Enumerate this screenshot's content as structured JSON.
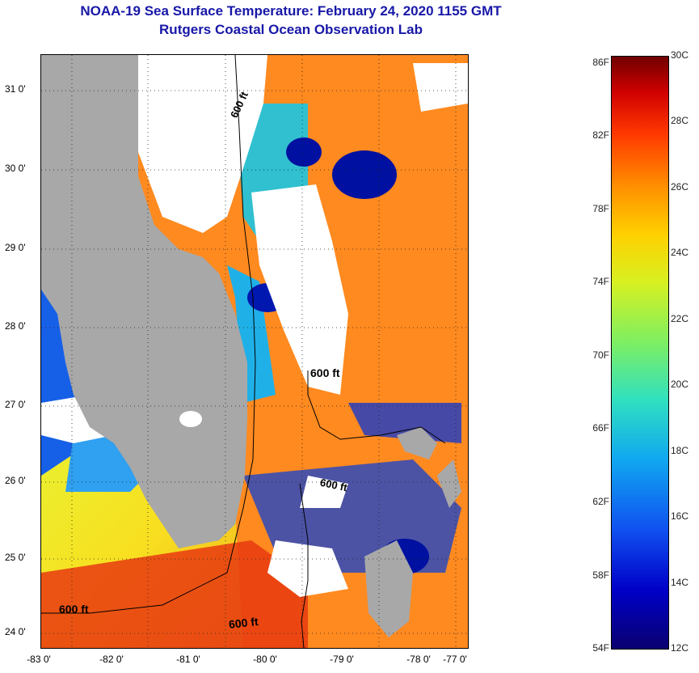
{
  "header": {
    "title_line1": "NOAA-19 Sea Surface Temperature:  February 24, 2020 1155 GMT",
    "title_line2": "Rutgers Coastal Ocean Observation Lab"
  },
  "map": {
    "lat_labels": [
      "31 0'",
      "30 0'",
      "29 0'",
      "28 0'",
      "27 0'",
      "26 0'",
      "25 0'",
      "24 0'"
    ],
    "lon_labels": [
      "-83 0'",
      "-82 0'",
      "-81 0'",
      "-80 0'",
      "-79 0'",
      "-78 0'",
      "-77 0'"
    ],
    "depth_contour_labels": [
      "600 ft",
      "600 ft",
      "600 ft",
      "600 ft",
      "600 ft"
    ],
    "colors": {
      "land": "#a8a8a8",
      "cloud": "#ffffff",
      "warm": "#f07020",
      "cool": "#1040d8"
    }
  },
  "colorbar": {
    "fahrenheit_labels": [
      "86F",
      "82F",
      "78F",
      "74F",
      "70F",
      "66F",
      "62F",
      "58F",
      "54F"
    ],
    "celsius_labels": [
      "30C",
      "28C",
      "26C",
      "24C",
      "22C",
      "20C",
      "18C",
      "16C",
      "14C",
      "12C"
    ]
  }
}
